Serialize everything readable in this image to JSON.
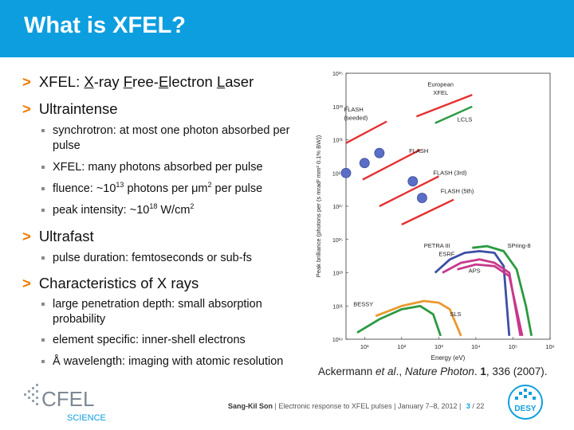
{
  "title": "What is XFEL?",
  "bullets": {
    "b1_prefix": "XFEL: ",
    "b1_x": "X",
    "b1_ray": "-ray ",
    "b1_f": "F",
    "b1_ree": "ree-",
    "b1_e": "E",
    "b1_lectron": "lectron ",
    "b1_l": "L",
    "b1_aser": "aser",
    "b2": "Ultraintense",
    "b2_s1": "synchrotron: at most one photon absorbed per pulse",
    "b2_s2": "XFEL: many photons absorbed per pulse",
    "b2_s3_a": "fluence: ~10",
    "b2_s3_exp": "13",
    "b2_s3_b": " photons per μm",
    "b2_s3_exp2": "2",
    "b2_s3_c": " per pulse",
    "b2_s4_a": "peak intensity: ~10",
    "b2_s4_exp": "18",
    "b2_s4_b": " W/cm",
    "b2_s4_exp2": "2",
    "b3": "Ultrafast",
    "b3_s1": "pulse duration: femtoseconds or sub-fs",
    "b4": "Characteristics of X rays",
    "b4_s1": "large penetration depth: small absorption probability",
    "b4_s2": "element specific: inner-shell electrons",
    "b4_s3": "Å wavelength: imaging with atomic resolution"
  },
  "citation": {
    "authors": "Ackermann ",
    "etal": "et al",
    "sep": "., ",
    "journal": "Nature Photon",
    "rest1": ". ",
    "vol": "1",
    "rest2": ", 336 (2007)."
  },
  "footer": {
    "author": "Sang-Kil Son",
    "sep1": " | ",
    "talk": "Electronic response to XFEL pulses",
    "sep2": " | ",
    "date": "January 7–8, 2012",
    "sep3": " | ",
    "page": "3",
    "total": "/ 22"
  },
  "logos": {
    "cfel_main": "CFEL",
    "cfel_sub": "SCIENCE",
    "desy": "DESY"
  },
  "chart_data": {
    "type": "line",
    "xlabel": "Energy (eV)",
    "ylabel": "Peak brilliance (photons per (s mrad² mm² 0.1% BW))",
    "x_scale": "log",
    "xticks": [
      "10¹",
      "10²",
      "10³",
      "10⁴",
      "10⁵",
      "10⁶"
    ],
    "yticks": [
      "10¹⁹",
      "10²¹",
      "10²³",
      "10²⁵",
      "10²⁷",
      "10²⁹",
      "10³¹",
      "10³³",
      "10³⁵"
    ],
    "xlim_log10": [
      0.5,
      6
    ],
    "ylim_log10": [
      19,
      35
    ],
    "series": [
      {
        "name": "FLASH (seeded)",
        "color": "#e53030",
        "x_log10": [
          0.5,
          1.6
        ],
        "y_log10": [
          30.8,
          32.1
        ]
      },
      {
        "name": "European XFEL",
        "color": "#e53030",
        "x_log10": [
          2.4,
          3.9
        ],
        "y_log10": [
          32.4,
          33.7
        ]
      },
      {
        "name": "LCLS",
        "color": "#2a9a40",
        "x_log10": [
          2.9,
          3.9
        ],
        "y_log10": [
          32.0,
          33.0
        ]
      },
      {
        "name": "FLASH",
        "color": "#e53030",
        "x_log10": [
          0.95,
          2.5
        ],
        "y_log10": [
          28.6,
          30.4
        ]
      },
      {
        "name": "FLASH (3rd)",
        "color": "#e53030",
        "x_log10": [
          1.4,
          3.0
        ],
        "y_log10": [
          27.0,
          28.8
        ]
      },
      {
        "name": "FLASH (5th)",
        "color": "#e53030",
        "x_log10": [
          2.0,
          3.4
        ],
        "y_log10": [
          25.9,
          27.4
        ]
      },
      {
        "name": "PETRA III",
        "color": "#3c4fa6",
        "x_log10": [
          2.9,
          3.3,
          3.7,
          4.1,
          4.5,
          4.75,
          4.9
        ],
        "y_log10": [
          23.0,
          23.8,
          24.2,
          24.3,
          24.2,
          23.4,
          19.2
        ]
      },
      {
        "name": "ESRF",
        "color": "#c7398c",
        "x_log10": [
          3.1,
          3.6,
          4.1,
          4.5,
          4.9,
          5.2
        ],
        "y_log10": [
          23.0,
          23.6,
          23.8,
          23.6,
          23.0,
          19.2
        ]
      },
      {
        "name": "APS",
        "color": "#c7398c",
        "x_log10": [
          3.5,
          4.0,
          4.5,
          4.9,
          5.25
        ],
        "y_log10": [
          23.2,
          23.5,
          23.4,
          22.8,
          19.2
        ]
      },
      {
        "name": "SPring-8",
        "color": "#2a9a40",
        "x_log10": [
          3.9,
          4.3,
          4.75,
          5.1,
          5.35,
          5.5
        ],
        "y_log10": [
          24.5,
          24.6,
          24.3,
          23.2,
          21.0,
          19.2
        ]
      },
      {
        "name": "SLS",
        "color": "#e89a30",
        "x_log10": [
          1.3,
          2.0,
          2.6,
          3.0,
          3.3,
          3.6
        ],
        "y_log10": [
          20.4,
          21.0,
          21.3,
          21.2,
          20.8,
          19.2
        ]
      },
      {
        "name": "BESSY",
        "color": "#2a9a40",
        "x_log10": [
          0.8,
          1.4,
          2.0,
          2.5,
          2.85,
          3.05
        ],
        "y_log10": [
          19.4,
          20.2,
          20.8,
          21.0,
          20.5,
          19.2
        ]
      }
    ],
    "points": [
      {
        "series": "FLASH",
        "x_log10": 0.5,
        "y_log10": 29.0
      },
      {
        "series": "FLASH",
        "x_log10": 1.0,
        "y_log10": 29.6
      },
      {
        "series": "FLASH",
        "x_log10": 1.4,
        "y_log10": 30.2
      },
      {
        "series": "FLASH (3rd)",
        "x_log10": 2.3,
        "y_log10": 28.5
      },
      {
        "series": "FLASH (5th)",
        "x_log10": 2.55,
        "y_log10": 27.5
      }
    ],
    "labels": [
      {
        "text": "European",
        "x_log10": 2.7,
        "y_log10": 34.2
      },
      {
        "text": "XFEL",
        "x_log10": 2.85,
        "y_log10": 33.7
      },
      {
        "text": "FLASH",
        "x_log10": 0.45,
        "y_log10": 32.7
      },
      {
        "text": "(seeded)",
        "x_log10": 0.45,
        "y_log10": 32.2
      },
      {
        "text": "LCLS",
        "x_log10": 3.5,
        "y_log10": 32.1
      },
      {
        "text": "FLASH",
        "x_log10": 2.2,
        "y_log10": 30.2
      },
      {
        "text": "FLASH (3rd)",
        "x_log10": 2.85,
        "y_log10": 28.9
      },
      {
        "text": "FLASH (5th)",
        "x_log10": 3.05,
        "y_log10": 27.8
      },
      {
        "text": "PETRA III",
        "x_log10": 2.6,
        "y_log10": 24.5
      },
      {
        "text": "ESRF",
        "x_log10": 3.0,
        "y_log10": 24.0
      },
      {
        "text": "SPring-8",
        "x_log10": 4.85,
        "y_log10": 24.5
      },
      {
        "text": "APS",
        "x_log10": 3.8,
        "y_log10": 23.0
      },
      {
        "text": "BESSY",
        "x_log10": 0.7,
        "y_log10": 21.0
      },
      {
        "text": "SLS",
        "x_log10": 3.3,
        "y_log10": 20.4
      }
    ]
  }
}
